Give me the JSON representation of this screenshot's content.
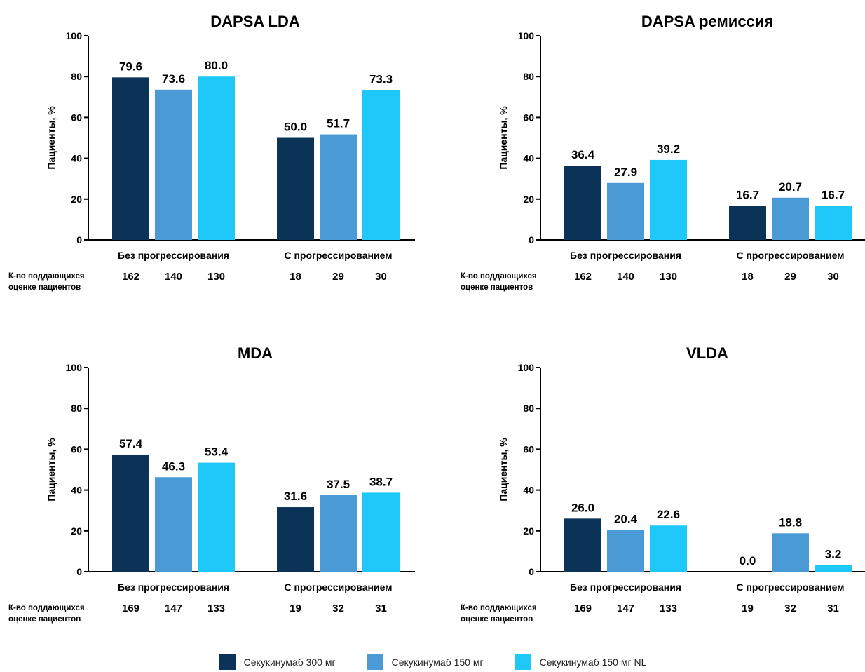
{
  "legend": {
    "items": [
      {
        "label": "Секукинумаб 300 мг",
        "color": "#0b3358"
      },
      {
        "label": "Секукинумаб 150 мг",
        "color": "#4a9ad6"
      },
      {
        "label": "Секукинумаб 150 мг NL",
        "color": "#1ec9f9"
      }
    ]
  },
  "n_row_label": [
    "К-во поддающихся",
    "оценке пациентов"
  ],
  "chart_data": [
    {
      "type": "bar",
      "title": "DAPSA LDA",
      "ylabel": "Пациенты, %",
      "ylim": [
        0,
        100
      ],
      "yticks": [
        0,
        20,
        40,
        60,
        80,
        100
      ],
      "categories": [
        "Без прогрессирования",
        "С прогрессированием"
      ],
      "series": [
        {
          "name": "Секукинумаб 300 мг",
          "values": [
            79.6,
            50.0
          ],
          "labels": [
            "79.6",
            "50.0"
          ],
          "n": [
            "162",
            "18"
          ]
        },
        {
          "name": "Секукинумаб 150 мг",
          "values": [
            73.6,
            51.7
          ],
          "labels": [
            "73.6",
            "51.7"
          ],
          "n": [
            "140",
            "29"
          ]
        },
        {
          "name": "Секукинумаб 150 мг NL",
          "values": [
            80.0,
            73.3
          ],
          "labels": [
            "80.0",
            "73.3"
          ],
          "n": [
            "130",
            "30"
          ]
        }
      ]
    },
    {
      "type": "bar",
      "title": "DAPSA ремиссия",
      "ylabel": "Пациенты, %",
      "ylim": [
        0,
        100
      ],
      "yticks": [
        0,
        20,
        40,
        60,
        80,
        100
      ],
      "categories": [
        "Без прогрессирования",
        "С прогрессированием"
      ],
      "series": [
        {
          "name": "Секукинумаб 300 мг",
          "values": [
            36.4,
            16.7
          ],
          "labels": [
            "36.4",
            "16.7"
          ],
          "n": [
            "162",
            "18"
          ]
        },
        {
          "name": "Секукинумаб 150 мг",
          "values": [
            27.9,
            20.7
          ],
          "labels": [
            "27.9",
            "20.7"
          ],
          "n": [
            "140",
            "29"
          ]
        },
        {
          "name": "Секукинумаб 150 мг NL",
          "values": [
            39.2,
            16.7
          ],
          "labels": [
            "39.2",
            "16.7"
          ],
          "n": [
            "130",
            "30"
          ]
        }
      ]
    },
    {
      "type": "bar",
      "title": "MDA",
      "ylabel": "Пациенты, %",
      "ylim": [
        0,
        100
      ],
      "yticks": [
        0,
        20,
        40,
        60,
        80,
        100
      ],
      "categories": [
        "Без прогрессирования",
        "С прогрессированием"
      ],
      "series": [
        {
          "name": "Секукинумаб 300 мг",
          "values": [
            57.4,
            31.6
          ],
          "labels": [
            "57.4",
            "31.6"
          ],
          "n": [
            "169",
            "19"
          ]
        },
        {
          "name": "Секукинумаб 150 мг",
          "values": [
            46.3,
            37.5
          ],
          "labels": [
            "46.3",
            "37.5"
          ],
          "n": [
            "147",
            "32"
          ]
        },
        {
          "name": "Секукинумаб 150 мг NL",
          "values": [
            53.4,
            38.7
          ],
          "labels": [
            "53.4",
            "38.7"
          ],
          "n": [
            "133",
            "31"
          ]
        }
      ]
    },
    {
      "type": "bar",
      "title": "VLDA",
      "ylabel": "Пациенты, %",
      "ylim": [
        0,
        100
      ],
      "yticks": [
        0,
        20,
        40,
        60,
        80,
        100
      ],
      "categories": [
        "Без прогрессирования",
        "С прогрессированием"
      ],
      "series": [
        {
          "name": "Секукинумаб 300 мг",
          "values": [
            26.0,
            0.0
          ],
          "labels": [
            "26.0",
            "0.0"
          ],
          "n": [
            "169",
            "19"
          ]
        },
        {
          "name": "Секукинумаб 150 мг",
          "values": [
            20.4,
            18.8
          ],
          "labels": [
            "20.4",
            "18.8"
          ],
          "n": [
            "147",
            "32"
          ]
        },
        {
          "name": "Секукинумаб 150 мг NL",
          "values": [
            22.6,
            3.2
          ],
          "labels": [
            "22.6",
            "3.2"
          ],
          "n": [
            "133",
            "31"
          ]
        }
      ]
    }
  ]
}
